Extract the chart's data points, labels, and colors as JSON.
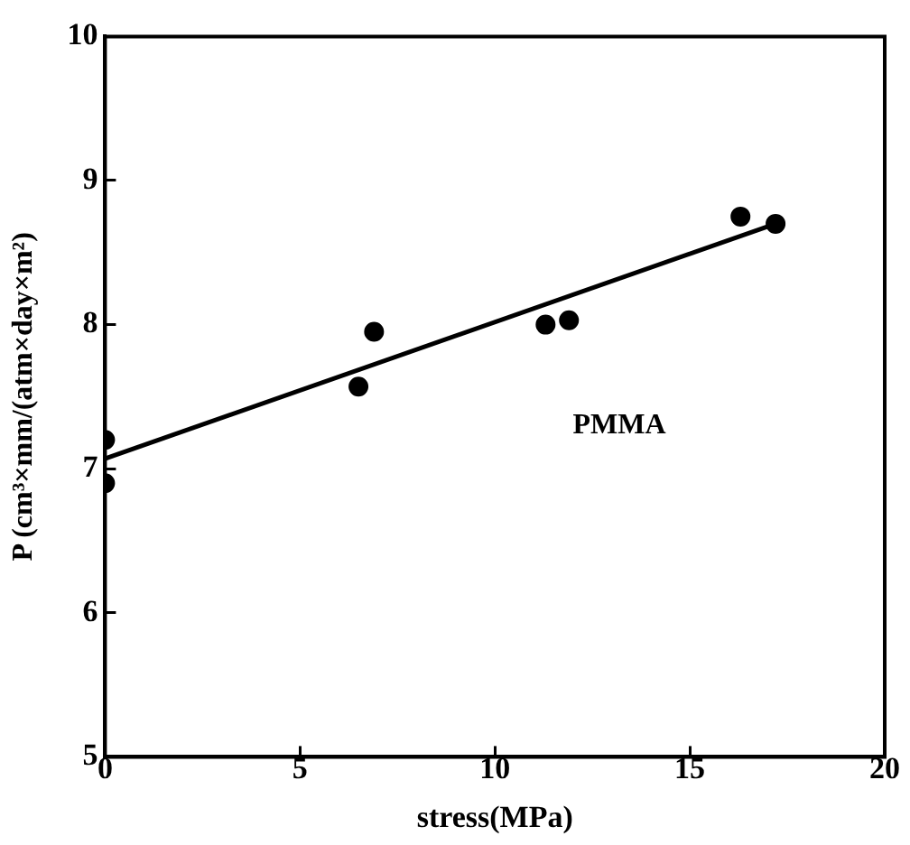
{
  "chart_data": {
    "type": "scatter",
    "xlabel": "stress(MPa)",
    "ylabel": "P (cm³×mm/(atm×day×m²)",
    "series": [
      {
        "name": "PMMA",
        "type": "scatter",
        "color": "#000000",
        "marker": "circle",
        "x": [
          0,
          0,
          6.5,
          6.9,
          11.3,
          11.9,
          16.3,
          17.2
        ],
        "values": [
          7.2,
          6.9,
          7.57,
          7.95,
          8.0,
          8.03,
          8.75,
          8.7
        ]
      },
      {
        "type": "line",
        "color": "#000000",
        "marker": "none",
        "line_style": "solid",
        "x": [
          0,
          17.2
        ],
        "values": [
          7.07,
          8.7
        ]
      }
    ],
    "xlim": [
      0,
      20
    ],
    "xticks": [
      0,
      5,
      10,
      15,
      20
    ],
    "ylim": [
      5,
      10
    ],
    "yticks": [
      5,
      6,
      7,
      8,
      9,
      10
    ],
    "grid": false,
    "legend": false
  }
}
